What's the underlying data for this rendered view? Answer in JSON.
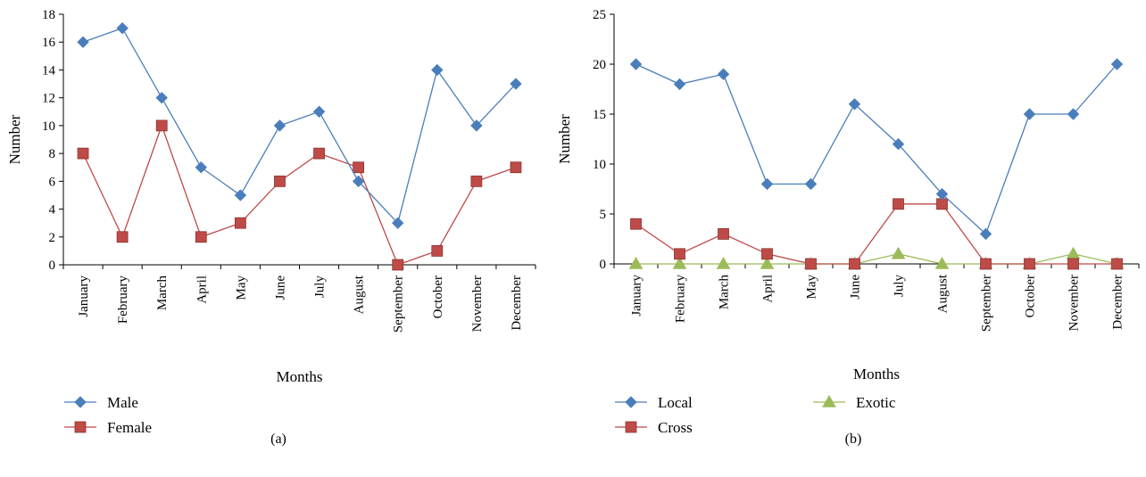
{
  "chart_data": [
    {
      "type": "line",
      "panel_label": "(a)",
      "xlabel": "Months",
      "ylabel": "Number",
      "ylim": [
        0,
        18
      ],
      "yticks": [
        "0",
        "2",
        "4",
        "6",
        "8",
        "10",
        "12",
        "14",
        "16",
        "18"
      ],
      "categories": [
        "January",
        "February",
        "March",
        "April",
        "May",
        "June",
        "July",
        "August",
        "September",
        "October",
        "November",
        "December"
      ],
      "legend_position": "bottom-left",
      "grid": false,
      "series": [
        {
          "name": "Male",
          "color": "#4a7ebb",
          "marker": "diamond",
          "values": [
            16,
            17,
            12,
            7,
            5,
            10,
            11,
            6,
            3,
            14,
            10,
            13
          ]
        },
        {
          "name": "Female",
          "color": "#be4b48",
          "marker": "square",
          "values": [
            8,
            2,
            10,
            2,
            3,
            6,
            8,
            7,
            0,
            1,
            6,
            7
          ]
        }
      ]
    },
    {
      "type": "line",
      "panel_label": "(b)",
      "xlabel": "Months",
      "ylabel": "Number",
      "ylim": [
        0,
        25
      ],
      "yticks": [
        "0",
        "5",
        "10",
        "15",
        "20",
        "25"
      ],
      "categories": [
        "January",
        "February",
        "March",
        "April",
        "May",
        "June",
        "July",
        "August",
        "September",
        "October",
        "November",
        "December"
      ],
      "legend_position": "bottom-left",
      "grid": false,
      "series": [
        {
          "name": "Local",
          "color": "#4a7ebb",
          "marker": "diamond",
          "values": [
            20,
            18,
            19,
            8,
            8,
            16,
            12,
            7,
            3,
            15,
            15,
            20
          ]
        },
        {
          "name": "Cross",
          "color": "#be4b48",
          "marker": "square",
          "values": [
            4,
            1,
            3,
            1,
            0,
            0,
            6,
            6,
            0,
            0,
            0,
            0
          ]
        },
        {
          "name": "Exotic",
          "color": "#9bbb59",
          "marker": "triangle",
          "values": [
            0,
            0,
            0,
            0,
            0,
            0,
            1,
            0,
            0,
            0,
            1,
            0
          ]
        }
      ]
    }
  ]
}
